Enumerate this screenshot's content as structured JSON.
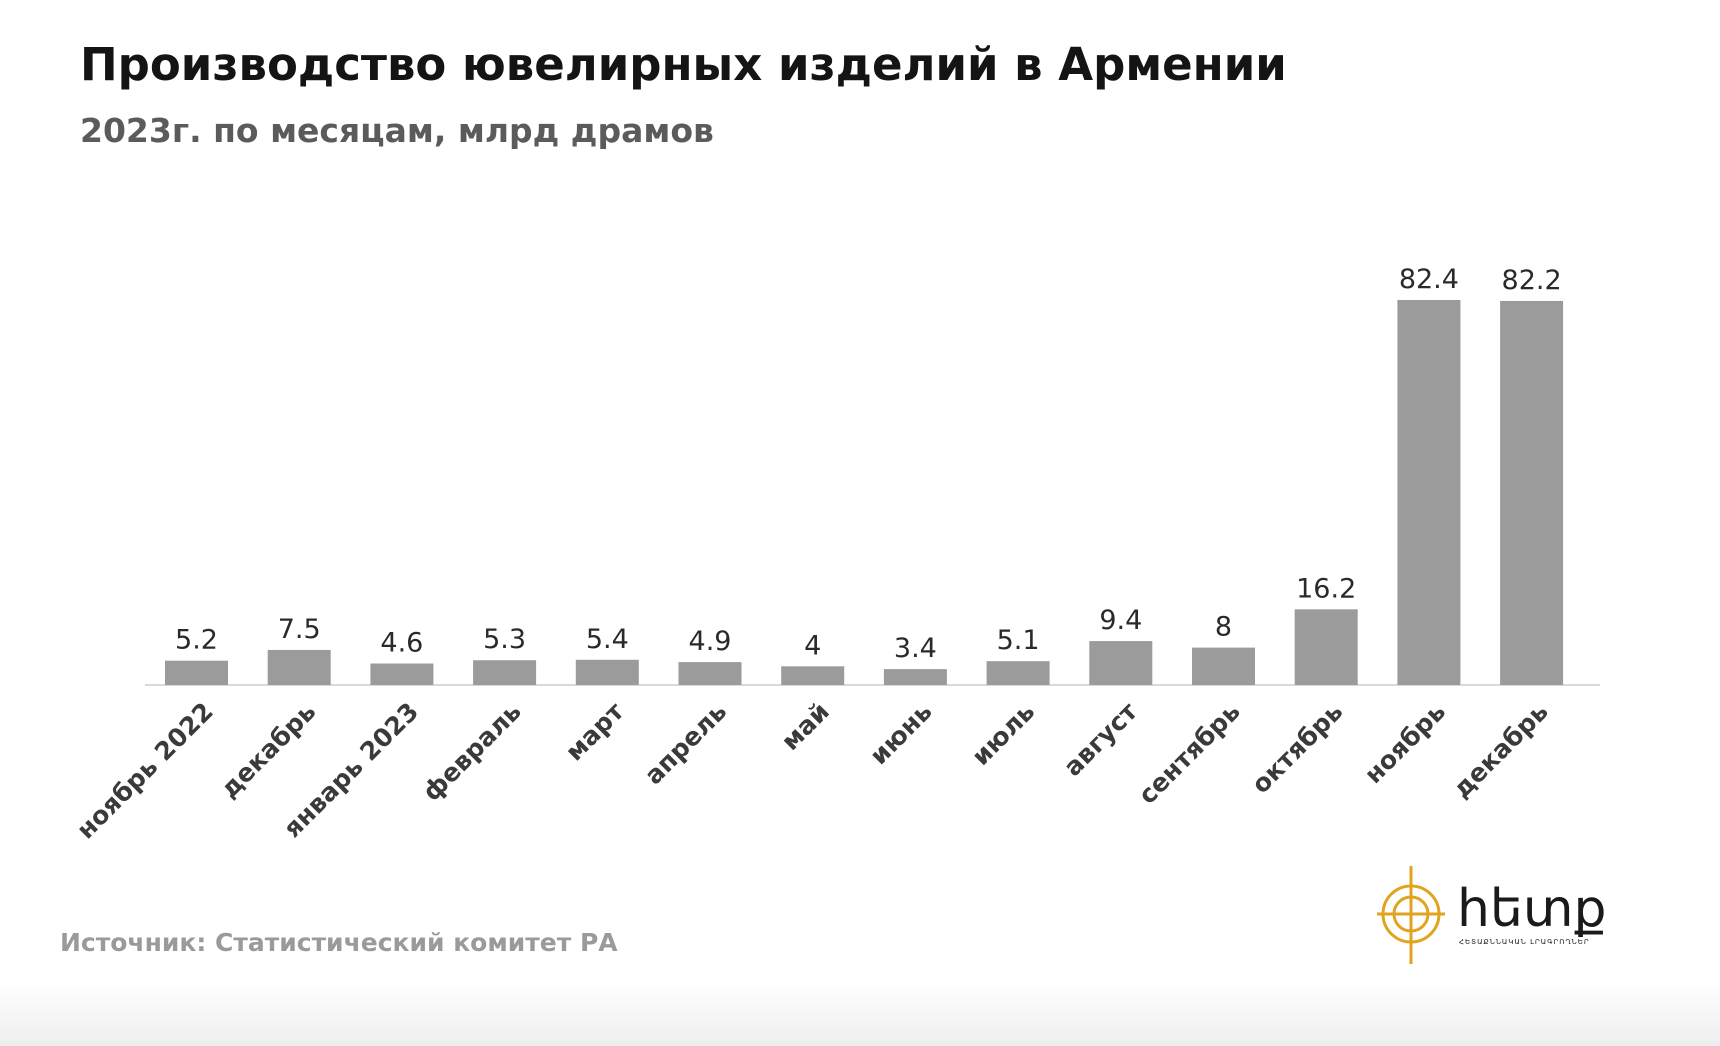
{
  "chart_data": {
    "type": "bar",
    "title": "Производство ювелирных изделий в Армении",
    "subtitle": "2023г. по месяцам, млрд драмов",
    "categories": [
      "ноябрь 2022",
      "декабрь",
      "январь 2023",
      "февраль",
      "март",
      "апрель",
      "май",
      "июнь",
      "июль",
      "август",
      "сентябрь",
      "октябрь",
      "ноябрь",
      "декабрь"
    ],
    "values": [
      5.2,
      7.5,
      4.6,
      5.3,
      5.4,
      4.9,
      4,
      3.4,
      5.1,
      9.4,
      8,
      16.2,
      82.4,
      82.2
    ],
    "data_labels": [
      "5.2",
      "7.5",
      "4.6",
      "5.3",
      "5.4",
      "4.9",
      "4",
      "3.4",
      "5.1",
      "9.4",
      "8",
      "16.2",
      "82.4",
      "82.2"
    ],
    "ylim": [
      0,
      82.4
    ],
    "grid": false,
    "legend": "none",
    "bar_color": "#9b9b9b",
    "axis_color": "#d9d9d9",
    "label_color": "#2a2a2a"
  },
  "source": "Источник: Статистический комитет РА",
  "logo": {
    "text": "հետք",
    "tagline": "ՀԵՏԱՔՆՆԱԿԱՆ ԼՐԱԳՐՈՂՆԵՐ",
    "icon": "compass-logo-icon",
    "color": "#e0a420",
    "text_color": "#1a1a1a"
  }
}
